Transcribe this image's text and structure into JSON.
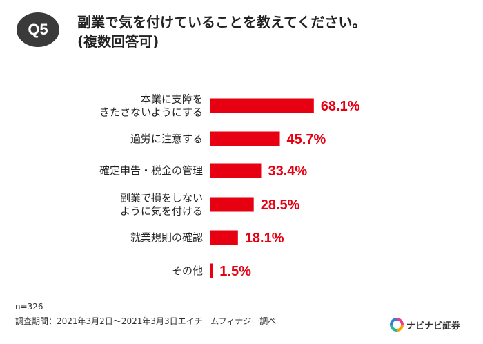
{
  "header": {
    "badge": "Q5",
    "title": "副業で気を付けていることを教えてください。",
    "subtitle": "(複数回答可)"
  },
  "chart_data": {
    "type": "bar",
    "orientation": "horizontal",
    "categories": [
      "本業に支障を\nきたさないようにする",
      "過労に注意する",
      "確定申告・税金の管理",
      "副業で損をしない\nように気を付ける",
      "就業規則の確認",
      "その他"
    ],
    "values": [
      68.1,
      45.7,
      33.4,
      28.5,
      18.1,
      1.5
    ],
    "value_labels": [
      "68.1%",
      "45.7%",
      "33.4%",
      "28.5%",
      "18.1%",
      "1.5%"
    ],
    "bar_color": "#e60012",
    "label_color": "#e60012",
    "xlim": [
      0,
      100
    ]
  },
  "footer": {
    "n": "n=326",
    "source": "調査期間：2021年3月2日〜2021年3月3日エイチームフィナジー調べ"
  },
  "logo": {
    "text": "ナビナビ証券"
  }
}
